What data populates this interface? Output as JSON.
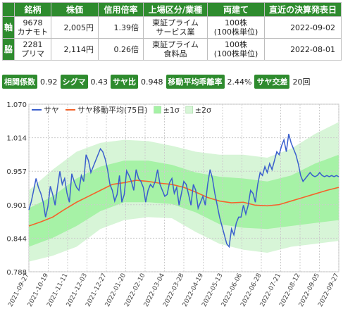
{
  "table": {
    "headers": [
      "",
      "銘柄",
      "株価",
      "信用倍率",
      "上場区分/業種",
      "両建て",
      "直近の決算発表日"
    ],
    "rows": [
      {
        "role": "軸",
        "code": "9678",
        "name": "カナモト",
        "price": "2,005円",
        "margin_ratio": "1.39倍",
        "market": "東証プライム",
        "sector": "サービス業",
        "lot": "100株",
        "lot_unit": "(100株単位)",
        "date": "2022-09-02"
      },
      {
        "role": "脇",
        "code": "2281",
        "name": "プリマ",
        "price": "2,114円",
        "margin_ratio": "0.26倍",
        "market": "東証プライム",
        "sector": "食料品",
        "lot": "100株",
        "lot_unit": "(100株単位)",
        "date": "2022-08-01"
      }
    ]
  },
  "stats": [
    {
      "label": "相関係数",
      "value": "0.92"
    },
    {
      "label": "シグマ",
      "value": "0.43"
    },
    {
      "label": "サヤ比",
      "value": "0.948"
    },
    {
      "label": "移動平均乖離率",
      "value": "2.44%"
    },
    {
      "label": "サヤ交差",
      "value": "20回"
    }
  ],
  "chart_data": {
    "type": "line",
    "legend": [
      "サヤ",
      "サヤ移動平均(75日)",
      "±1σ",
      "±2σ"
    ],
    "legend_position": "top-left",
    "grid": true,
    "ylim": [
      0.788,
      1.07
    ],
    "yticks": [
      "1.070",
      "1.014",
      "0.957",
      "0.901",
      "0.844",
      "0.788"
    ],
    "xticks": [
      "2021-09-27",
      "2021-10-19",
      "2021-11-11",
      "2021-12-03",
      "2021-12-27",
      "2022-01-20",
      "2022-02-10",
      "2022-03-04",
      "2022-03-28",
      "2022-04-19",
      "2022-05-13",
      "2022-06-06",
      "2022-06-28",
      "2022-07-21",
      "2022-08-12",
      "2022-09-05",
      "2022-09-27"
    ],
    "colors": {
      "saya": "#3a5fcd",
      "ma": "#f4632b",
      "band1": "#a6f2a6",
      "band2": "#d7f5d7"
    },
    "series": [
      {
        "name": "サヤ",
        "x": [
          0,
          2,
          4,
          6,
          8,
          10,
          12,
          14,
          16,
          18,
          20,
          22,
          24,
          26,
          28,
          30,
          32,
          34,
          36,
          38,
          40,
          42,
          44,
          46,
          48,
          50,
          52,
          54,
          56,
          58,
          60,
          62,
          64,
          66,
          68,
          70,
          72,
          74,
          76,
          78,
          80,
          82,
          84,
          86,
          88,
          90,
          92,
          94,
          96,
          98,
          100,
          102,
          104,
          106,
          108,
          110,
          112,
          114,
          116,
          118,
          120,
          122,
          124,
          126,
          128,
          130,
          132,
          134,
          136,
          138,
          140,
          142,
          144,
          146,
          148,
          150,
          152,
          154,
          156,
          158,
          160,
          162,
          164,
          166,
          168,
          170,
          172,
          174,
          176,
          178,
          180,
          182,
          184,
          186,
          188,
          190,
          192,
          194,
          196,
          198,
          200,
          202,
          204,
          206,
          208,
          210,
          212,
          214,
          216,
          218,
          220,
          222,
          224,
          226,
          228,
          230,
          232,
          234,
          236,
          238,
          240,
          242,
          244,
          246,
          248,
          250,
          252,
          254,
          256,
          258,
          260
        ],
        "values": [
          0.892,
          0.906,
          0.925,
          0.945,
          0.93,
          0.92,
          0.905,
          0.88,
          0.898,
          0.932,
          0.918,
          0.9,
          0.93,
          0.957,
          0.935,
          0.945,
          0.92,
          0.905,
          0.953,
          0.94,
          0.93,
          0.925,
          0.95,
          0.94,
          0.985,
          0.975,
          0.955,
          0.965,
          0.975,
          0.985,
          0.995,
          0.99,
          0.978,
          0.96,
          0.935,
          0.925,
          0.907,
          0.918,
          0.95,
          0.905,
          0.918,
          0.958,
          0.95,
          0.94,
          0.925,
          0.96,
          0.945,
          0.94,
          0.93,
          0.905,
          0.925,
          0.935,
          0.93,
          0.94,
          0.96,
          0.935,
          0.925,
          0.915,
          0.918,
          0.938,
          0.945,
          0.92,
          0.93,
          0.9,
          0.92,
          0.94,
          0.935,
          0.918,
          0.9,
          0.935,
          0.925,
          0.895,
          0.905,
          0.915,
          0.9,
          0.935,
          0.96,
          0.945,
          0.92,
          0.9,
          0.88,
          0.865,
          0.85,
          0.835,
          0.83,
          0.86,
          0.85,
          0.87,
          0.88,
          0.88,
          0.9,
          0.885,
          0.9,
          0.925,
          0.92,
          0.905,
          0.935,
          0.955,
          0.95,
          0.965,
          0.955,
          0.97,
          0.96,
          0.975,
          0.99,
          0.985,
          1.0,
          1.01,
          0.99,
          1.02,
          1.005,
          0.995,
          0.985,
          0.97,
          0.95,
          0.94,
          0.945,
          0.95,
          0.955,
          0.95,
          0.948,
          0.95,
          0.955,
          0.95,
          0.948,
          0.95,
          0.948,
          0.95,
          0.948,
          0.95,
          0.948
        ]
      },
      {
        "name": "サヤ移動平均(75日)",
        "x": [
          0,
          10,
          20,
          30,
          40,
          50,
          60,
          70,
          80,
          90,
          100,
          110,
          120,
          130,
          140,
          150,
          160,
          170,
          180,
          190,
          200,
          210,
          220,
          230,
          240,
          250,
          260
        ],
        "values": [
          0.865,
          0.872,
          0.88,
          0.893,
          0.905,
          0.915,
          0.925,
          0.935,
          0.938,
          0.942,
          0.94,
          0.937,
          0.935,
          0.93,
          0.922,
          0.913,
          0.907,
          0.904,
          0.905,
          0.9,
          0.899,
          0.901,
          0.907,
          0.913,
          0.919,
          0.925,
          0.93
        ]
      },
      {
        "name": "±1σ",
        "x": [
          0,
          20,
          40,
          60,
          80,
          100,
          120,
          140,
          160,
          180,
          200,
          220,
          240,
          260
        ],
        "upper": [
          0.895,
          0.915,
          0.945,
          0.965,
          0.975,
          0.975,
          0.968,
          0.955,
          0.948,
          0.945,
          0.94,
          0.95,
          0.97,
          0.985
        ],
        "lower": [
          0.83,
          0.845,
          0.865,
          0.89,
          0.905,
          0.905,
          0.902,
          0.888,
          0.868,
          0.862,
          0.86,
          0.865,
          0.87,
          0.875
        ]
      },
      {
        "name": "±2σ",
        "x": [
          0,
          20,
          40,
          60,
          80,
          100,
          120,
          140,
          160,
          180,
          200,
          220,
          240,
          260
        ],
        "upper": [
          0.925,
          0.96,
          0.99,
          1.005,
          1.01,
          1.008,
          1.0,
          0.99,
          0.985,
          0.985,
          0.98,
          0.995,
          1.02,
          1.04
        ],
        "lower": [
          0.805,
          0.815,
          0.83,
          0.86,
          0.875,
          0.88,
          0.878,
          0.855,
          0.835,
          0.825,
          0.82,
          0.83,
          0.835,
          0.84
        ]
      }
    ]
  }
}
